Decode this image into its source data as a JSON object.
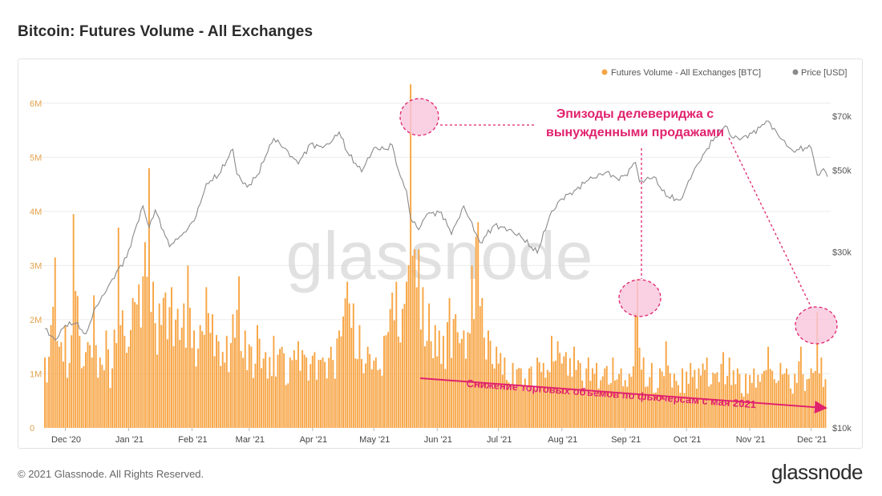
{
  "header": {
    "title": "Bitcoin: Futures Volume - All Exchanges"
  },
  "footer": {
    "copyright": "© 2021 Glassnode. All Rights Reserved.",
    "brand": "glassnode"
  },
  "watermark": "glassnode",
  "colors": {
    "volume": "#f7a545",
    "price": "#8a8a8a",
    "annotation": "#e0226e",
    "annotation_fill": "#f7c6dc",
    "grid": "#ececec"
  },
  "chart_data": {
    "type": "bar",
    "title": "Bitcoin: Futures Volume - All Exchanges",
    "legend": [
      {
        "name": "Futures Volume - All Exchanges [BTC]",
        "color": "#f7a545"
      },
      {
        "name": "Price [USD]",
        "color": "#8a8a8a"
      }
    ],
    "legend_position": "top-right",
    "grid": true,
    "y_left": {
      "ticks": [
        "0",
        "1M",
        "2M",
        "3M",
        "4M",
        "5M",
        "6M"
      ],
      "range": [
        0,
        6500000
      ]
    },
    "y_right": {
      "ticks": [
        "$10k",
        "$30k",
        "$50k",
        "$70k"
      ],
      "scale": "log",
      "range": [
        10000,
        90000
      ]
    },
    "x_ticks": [
      "Dec '20",
      "Jan '21",
      "Feb '21",
      "Mar '21",
      "Apr '21",
      "May '21",
      "Jun '21",
      "Jul '21",
      "Aug '21",
      "Sep '21",
      "Oct '21",
      "Nov '21",
      "Dec '21"
    ],
    "x_range": [
      "2020-11-21",
      "2021-12-09"
    ],
    "series": [
      {
        "name": "Futures Volume - All Exchanges [BTC]",
        "type": "bar",
        "points": [
          [
            "2020-11-21",
            1300000
          ],
          [
            "2020-11-24",
            1900000
          ],
          [
            "2020-11-26",
            3150000
          ],
          [
            "2020-11-28",
            1500000
          ],
          [
            "2020-12-01",
            1900000
          ],
          [
            "2020-12-03",
            1200000
          ],
          [
            "2020-12-05",
            3950000
          ],
          [
            "2020-12-08",
            1700000
          ],
          [
            "2020-12-11",
            1400000
          ],
          [
            "2020-12-15",
            2450000
          ],
          [
            "2020-12-18",
            1300000
          ],
          [
            "2020-12-21",
            1800000
          ],
          [
            "2020-12-24",
            1100000
          ],
          [
            "2020-12-27",
            3700000
          ],
          [
            "2020-12-30",
            1700000
          ],
          [
            "2021-01-03",
            2400000
          ],
          [
            "2021-01-06",
            2650000
          ],
          [
            "2021-01-08",
            2800000
          ],
          [
            "2021-01-11",
            4800000
          ],
          [
            "2021-01-13",
            2700000
          ],
          [
            "2021-01-16",
            2300000
          ],
          [
            "2021-01-19",
            2500000
          ],
          [
            "2021-01-22",
            2600000
          ],
          [
            "2021-01-25",
            2200000
          ],
          [
            "2021-01-28",
            2300000
          ],
          [
            "2021-01-30",
            3000000
          ],
          [
            "2021-02-02",
            1800000
          ],
          [
            "2021-02-05",
            1900000
          ],
          [
            "2021-02-08",
            2600000
          ],
          [
            "2021-02-11",
            2100000
          ],
          [
            "2021-02-14",
            1600000
          ],
          [
            "2021-02-18",
            1700000
          ],
          [
            "2021-02-21",
            2100000
          ],
          [
            "2021-02-24",
            2800000
          ],
          [
            "2021-02-27",
            1800000
          ],
          [
            "2021-03-02",
            1500000
          ],
          [
            "2021-03-05",
            1900000
          ],
          [
            "2021-03-09",
            1400000
          ],
          [
            "2021-03-13",
            1700000
          ],
          [
            "2021-03-17",
            1500000
          ],
          [
            "2021-03-21",
            1300000
          ],
          [
            "2021-03-25",
            1600000
          ],
          [
            "2021-03-29",
            1300000
          ],
          [
            "2021-04-02",
            1400000
          ],
          [
            "2021-04-06",
            1300000
          ],
          [
            "2021-04-10",
            1500000
          ],
          [
            "2021-04-14",
            1800000
          ],
          [
            "2021-04-18",
            2700000
          ],
          [
            "2021-04-21",
            2300000
          ],
          [
            "2021-04-24",
            1900000
          ],
          [
            "2021-04-28",
            1500000
          ],
          [
            "2021-05-02",
            1300000
          ],
          [
            "2021-05-06",
            1700000
          ],
          [
            "2021-05-10",
            2500000
          ],
          [
            "2021-05-12",
            2700000
          ],
          [
            "2021-05-15",
            2200000
          ],
          [
            "2021-05-17",
            2700000
          ],
          [
            "2021-05-19",
            6350000
          ],
          [
            "2021-05-21",
            3300000
          ],
          [
            "2021-05-23",
            3300000
          ],
          [
            "2021-05-25",
            2600000
          ],
          [
            "2021-05-28",
            2300000
          ],
          [
            "2021-05-31",
            1900000
          ],
          [
            "2021-06-04",
            1700000
          ],
          [
            "2021-06-07",
            2400000
          ],
          [
            "2021-06-10",
            2100000
          ],
          [
            "2021-06-14",
            1800000
          ],
          [
            "2021-06-18",
            3000000
          ],
          [
            "2021-06-21",
            3800000
          ],
          [
            "2021-06-23",
            2400000
          ],
          [
            "2021-06-26",
            1800000
          ],
          [
            "2021-06-30",
            1500000
          ],
          [
            "2021-07-04",
            1300000
          ],
          [
            "2021-07-08",
            1200000
          ],
          [
            "2021-07-12",
            1100000
          ],
          [
            "2021-07-16",
            1100000
          ],
          [
            "2021-07-20",
            1300000
          ],
          [
            "2021-07-23",
            1200000
          ],
          [
            "2021-07-27",
            1700000
          ],
          [
            "2021-07-30",
            1600000
          ],
          [
            "2021-08-03",
            1400000
          ],
          [
            "2021-08-07",
            1500000
          ],
          [
            "2021-08-10",
            1200000
          ],
          [
            "2021-08-14",
            1300000
          ],
          [
            "2021-08-18",
            1200000
          ],
          [
            "2021-08-22",
            1100000
          ],
          [
            "2021-08-26",
            1300000
          ],
          [
            "2021-08-30",
            1100000
          ],
          [
            "2021-09-03",
            1000000
          ],
          [
            "2021-09-07",
            2750000
          ],
          [
            "2021-09-10",
            1300000
          ],
          [
            "2021-09-14",
            1200000
          ],
          [
            "2021-09-18",
            1100000
          ],
          [
            "2021-09-21",
            1600000
          ],
          [
            "2021-09-25",
            1000000
          ],
          [
            "2021-09-29",
            1100000
          ],
          [
            "2021-10-03",
            1200000
          ],
          [
            "2021-10-07",
            1100000
          ],
          [
            "2021-10-11",
            1300000
          ],
          [
            "2021-10-15",
            1000000
          ],
          [
            "2021-10-19",
            1400000
          ],
          [
            "2021-10-22",
            1300000
          ],
          [
            "2021-10-26",
            1100000
          ],
          [
            "2021-10-30",
            1000000
          ],
          [
            "2021-11-03",
            1100000
          ],
          [
            "2021-11-07",
            1000000
          ],
          [
            "2021-11-10",
            1500000
          ],
          [
            "2021-11-13",
            900000
          ],
          [
            "2021-11-16",
            1200000
          ],
          [
            "2021-11-19",
            1100000
          ],
          [
            "2021-11-23",
            1000000
          ],
          [
            "2021-11-26",
            1500000
          ],
          [
            "2021-11-29",
            900000
          ],
          [
            "2021-12-01",
            1100000
          ],
          [
            "2021-12-04",
            2150000
          ],
          [
            "2021-12-06",
            1300000
          ],
          [
            "2021-12-08",
            900000
          ]
        ]
      },
      {
        "name": "Price [USD]",
        "type": "line",
        "axis": "right",
        "points": [
          [
            "2020-11-21",
            18600
          ],
          [
            "2020-11-26",
            17300
          ],
          [
            "2020-12-01",
            19000
          ],
          [
            "2020-12-06",
            19200
          ],
          [
            "2020-12-11",
            18000
          ],
          [
            "2020-12-16",
            21300
          ],
          [
            "2020-12-21",
            23500
          ],
          [
            "2020-12-26",
            26500
          ],
          [
            "2020-12-31",
            29000
          ],
          [
            "2021-01-03",
            33000
          ],
          [
            "2021-01-08",
            40000
          ],
          [
            "2021-01-11",
            35000
          ],
          [
            "2021-01-14",
            39000
          ],
          [
            "2021-01-21",
            31000
          ],
          [
            "2021-01-25",
            32500
          ],
          [
            "2021-01-29",
            34000
          ],
          [
            "2021-02-03",
            37500
          ],
          [
            "2021-02-08",
            46000
          ],
          [
            "2021-02-14",
            48500
          ],
          [
            "2021-02-21",
            57000
          ],
          [
            "2021-02-23",
            48800
          ],
          [
            "2021-02-28",
            45000
          ],
          [
            "2021-03-05",
            48500
          ],
          [
            "2021-03-10",
            56000
          ],
          [
            "2021-03-13",
            61000
          ],
          [
            "2021-03-18",
            57500
          ],
          [
            "2021-03-25",
            52000
          ],
          [
            "2021-03-31",
            59000
          ],
          [
            "2021-04-06",
            57500
          ],
          [
            "2021-04-10",
            59500
          ],
          [
            "2021-04-14",
            63500
          ],
          [
            "2021-04-18",
            56000
          ],
          [
            "2021-04-25",
            49500
          ],
          [
            "2021-05-01",
            57500
          ],
          [
            "2021-05-07",
            57000
          ],
          [
            "2021-05-10",
            58500
          ],
          [
            "2021-05-13",
            50000
          ],
          [
            "2021-05-17",
            44000
          ],
          [
            "2021-05-19",
            37000
          ],
          [
            "2021-05-23",
            34500
          ],
          [
            "2021-05-27",
            38000
          ],
          [
            "2021-06-03",
            38500
          ],
          [
            "2021-06-08",
            33500
          ],
          [
            "2021-06-14",
            40000
          ],
          [
            "2021-06-22",
            31800
          ],
          [
            "2021-06-29",
            35500
          ],
          [
            "2021-07-06",
            34500
          ],
          [
            "2021-07-12",
            33000
          ],
          [
            "2021-07-20",
            29800
          ],
          [
            "2021-07-26",
            37500
          ],
          [
            "2021-07-31",
            41500
          ],
          [
            "2021-08-07",
            44000
          ],
          [
            "2021-08-14",
            47000
          ],
          [
            "2021-08-23",
            49500
          ],
          [
            "2021-08-28",
            47500
          ],
          [
            "2021-09-01",
            48500
          ],
          [
            "2021-09-06",
            52500
          ],
          [
            "2021-09-08",
            46500
          ],
          [
            "2021-09-15",
            48000
          ],
          [
            "2021-09-21",
            42500
          ],
          [
            "2021-09-28",
            41500
          ],
          [
            "2021-10-04",
            49000
          ],
          [
            "2021-10-09",
            55000
          ],
          [
            "2021-10-15",
            61500
          ],
          [
            "2021-10-20",
            66000
          ],
          [
            "2021-10-23",
            61500
          ],
          [
            "2021-10-28",
            61000
          ],
          [
            "2021-11-02",
            63000
          ],
          [
            "2021-11-08",
            66500
          ],
          [
            "2021-11-10",
            68000
          ],
          [
            "2021-11-16",
            61000
          ],
          [
            "2021-11-22",
            56500
          ],
          [
            "2021-11-28",
            57500
          ],
          [
            "2021-12-01",
            57500
          ],
          [
            "2021-12-04",
            48500
          ],
          [
            "2021-12-07",
            50500
          ],
          [
            "2021-12-09",
            48000
          ]
        ]
      }
    ],
    "annotations": [
      {
        "text_lines": [
          "Эпизоды делевериджа с",
          "вынужденными продажами"
        ]
      },
      {
        "text": "Снижение торговых объемов по фьючерсам с мая 2021"
      }
    ]
  }
}
